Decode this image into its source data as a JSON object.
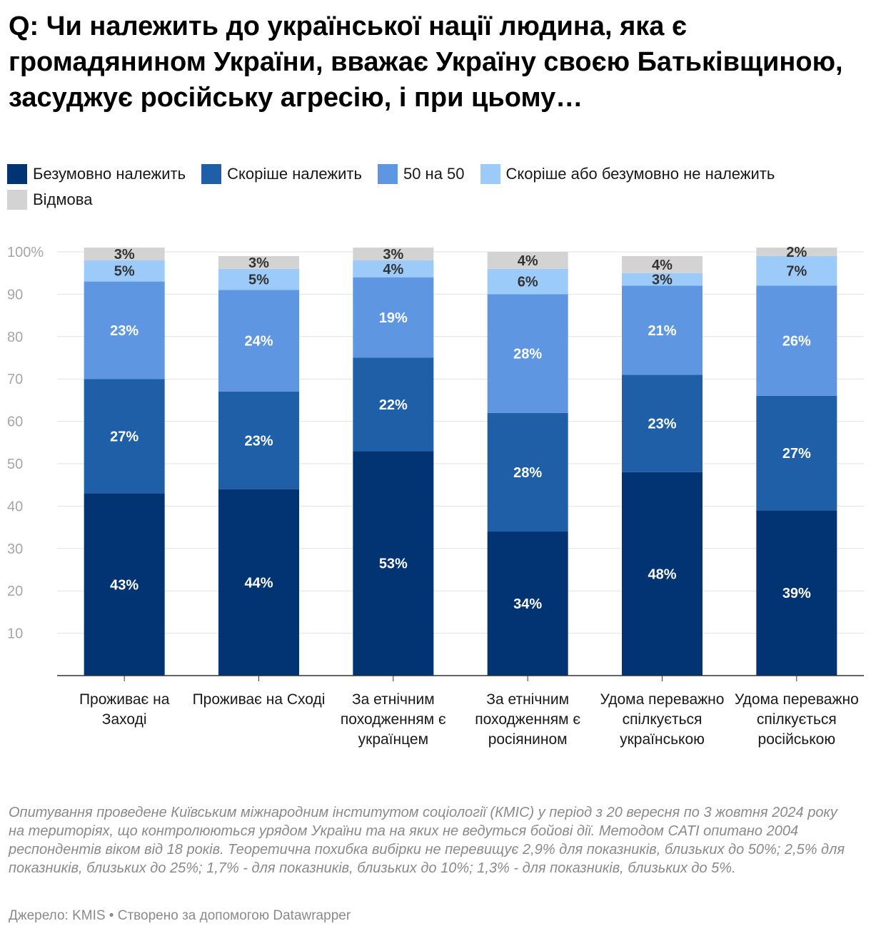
{
  "title": "Q: Чи належить до української нації людина, яка є громадянином України, вважає Україну своєю Батьківщиною, засуджує російську агресію, і при цьому…",
  "legend": [
    {
      "label": "Безумовно належить",
      "color": "#023373"
    },
    {
      "label": "Скоріше належить",
      "color": "#1e5fa8"
    },
    {
      "label": "50 на 50",
      "color": "#5e96e1"
    },
    {
      "label": "Скоріше або безумовно не належить",
      "color": "#9ccbfa"
    },
    {
      "label": "Відмова",
      "color": "#d3d3d3"
    }
  ],
  "chart_data": {
    "type": "bar",
    "stacked": true,
    "categories": [
      "Проживає на Заході",
      "Проживає на Сході",
      "За етнічним походженням є українцем",
      "За етнічним походженням є росіянином",
      "Удома переважно спілкується українською",
      "Удома переважно спілкується російською"
    ],
    "series": [
      {
        "name": "Безумовно належить",
        "values": [
          43,
          44,
          53,
          34,
          48,
          39
        ],
        "color": "#023373",
        "label_color": "#ffffff"
      },
      {
        "name": "Скоріше належить",
        "values": [
          27,
          23,
          22,
          28,
          23,
          27
        ],
        "color": "#1e5fa8",
        "label_color": "#ffffff"
      },
      {
        "name": "50 на 50",
        "values": [
          23,
          24,
          19,
          28,
          21,
          26
        ],
        "color": "#5e96e1",
        "label_color": "#ffffff"
      },
      {
        "name": "Скоріше або безумовно не належить",
        "values": [
          5,
          5,
          4,
          6,
          3,
          7
        ],
        "color": "#9ccbfa",
        "label_color": "#333333"
      },
      {
        "name": "Відмова",
        "values": [
          3,
          3,
          3,
          4,
          4,
          2
        ],
        "color": "#d3d3d3",
        "label_color": "#333333"
      }
    ],
    "value_suffix": "%",
    "yticks": [
      "10",
      "20",
      "30",
      "40",
      "50",
      "60",
      "70",
      "80",
      "90",
      "100%"
    ],
    "ylim": [
      0,
      100
    ],
    "grid": true
  },
  "notes": "Опитування проведене Київським міжнародним інститутом соціології (КМІС) у період з 20 вересня по 3 жовтня 2024 року на територіях, що контролюються урядом України та на яких не ведуться бойові дії. Методом CATI опитано 2004 респондентів віком від 18 років. Теоретична похибка вибірки не перевищує 2,9% для показників, близьких до 50%; 2,5% для показників, близьких до 25%; 1,7% - для показників, близьких до 10%; 1,3% - для показників, близьких до 5%.",
  "source": "Джерело: KMIS • Створено за допомогою Datawrapper"
}
